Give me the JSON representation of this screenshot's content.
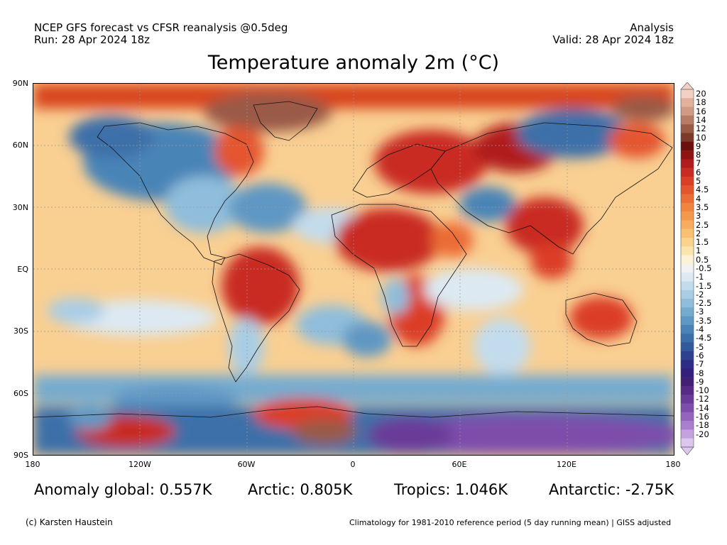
{
  "header": {
    "left_line1": "NCEP GFS forecast vs CFSR reanalysis @0.5deg",
    "left_line2": "Run: 28 Apr 2024 18z",
    "right_line1": "Analysis",
    "right_line2": "Valid: 28 Apr 2024 18z"
  },
  "title": "Temperature anomaly 2m (°C)",
  "map": {
    "lat_labels": [
      "90N",
      "60N",
      "30N",
      "EQ",
      "30S",
      "60S",
      "90S"
    ],
    "lon_labels": [
      "180",
      "120W",
      "60W",
      "0",
      "60E",
      "120E",
      "180"
    ]
  },
  "colorbar": {
    "labels": [
      "20",
      "18",
      "16",
      "14",
      "12",
      "10",
      "9",
      "8",
      "7",
      "6",
      "5",
      "4.5",
      "4",
      "3.5",
      "3",
      "2.5",
      "2",
      "1.5",
      "1",
      "0.5",
      "-0.5",
      "-1",
      "-1.5",
      "-2",
      "-2.5",
      "-3",
      "-3.5",
      "-4",
      "-4.5",
      "-5",
      "-6",
      "-7",
      "-8",
      "-9",
      "-10",
      "-12",
      "-14",
      "-16",
      "-18",
      "-20"
    ],
    "colors": [
      "#f2d0c4",
      "#e3b09c",
      "#d09a85",
      "#b87c66",
      "#9a5a46",
      "#7d3a2a",
      "#6b0f0f",
      "#8e1414",
      "#b01b1b",
      "#c92a22",
      "#dc3d26",
      "#e5552d",
      "#ec6c35",
      "#f1843f",
      "#f4994c",
      "#f7ad5d",
      "#f9c171",
      "#fbd38c",
      "#fce4ad",
      "#fdf2d6",
      "#f2f2f2",
      "#dce9f3",
      "#c3dced",
      "#a9cde5",
      "#8fbddb",
      "#76abd0",
      "#5f98c4",
      "#4a84b7",
      "#3c6fa9",
      "#33589b",
      "#2e4190",
      "#2c2b85",
      "#33207c",
      "#432076",
      "#562a85",
      "#6a3a98",
      "#7e4dac",
      "#9464be",
      "#aa7fcf",
      "#c4a2e0",
      "#ddc7ef"
    ]
  },
  "stats": {
    "global": "Anomaly global: 0.557K",
    "arctic": "Arctic: 0.805K",
    "tropics": "Tropics: 1.046K",
    "antarctic": "Antarctic: -2.75K"
  },
  "footer": {
    "credit": "(c) Karsten Haustein",
    "note": "Climatology for 1981-2010 reference period (5 day running mean) | GISS adjusted"
  }
}
